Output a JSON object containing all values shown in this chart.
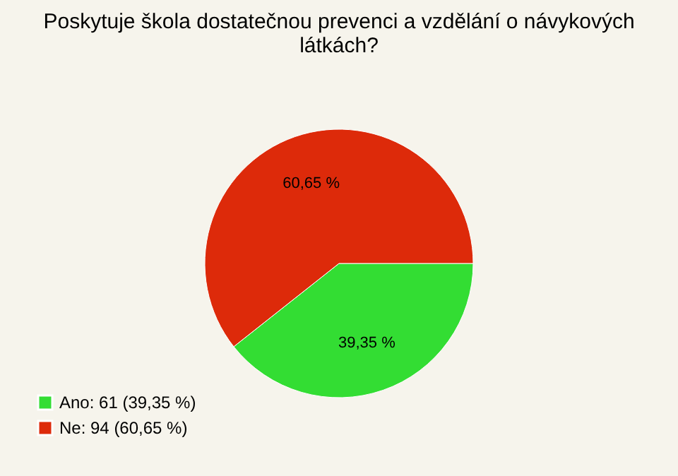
{
  "chart_data": {
    "type": "pie",
    "title": [
      "Poskytuje škola dostatečnou prevenci a vzdělání o návykových",
      "látkách?"
    ],
    "categories": [
      "Ano: 61 (39,35 %)",
      "Ne: 94 (60,65 %)"
    ],
    "values": [
      39.35,
      60.65
    ],
    "value_labels": [
      "39,35 %",
      "60,65 %"
    ],
    "colors": [
      "#33dd33",
      "#dd2a0a"
    ],
    "legend": "bottom left"
  }
}
